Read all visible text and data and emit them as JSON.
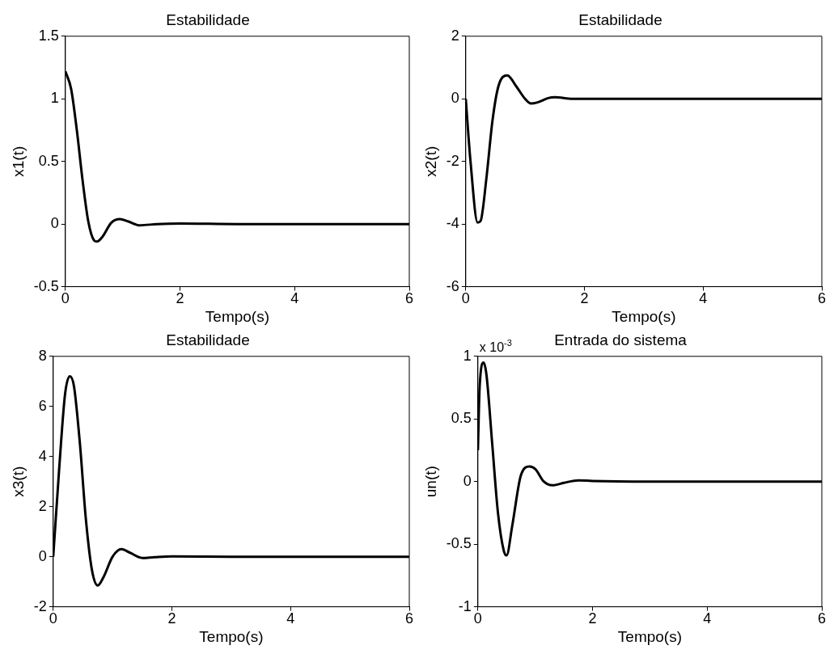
{
  "chart_data": [
    {
      "type": "line",
      "title": "Estabilidade",
      "xlabel": "Tempo(s)",
      "ylabel": "x1(t)",
      "x": [
        0,
        0.1,
        0.2,
        0.3,
        0.4,
        0.5,
        0.55,
        0.65,
        0.8,
        0.95,
        1.1,
        1.3,
        1.6,
        2,
        3,
        4,
        5,
        6
      ],
      "series": [
        {
          "color": "#000000",
          "values": [
            1.22,
            1.08,
            0.75,
            0.35,
            0.02,
            -0.13,
            -0.14,
            -0.1,
            0.01,
            0.04,
            0.02,
            -0.01,
            0,
            0.005,
            0,
            0,
            0,
            0
          ]
        }
      ],
      "xlim": [
        0,
        6
      ],
      "ylim": [
        -0.5,
        1.5
      ],
      "xticks": [
        0,
        2,
        4,
        6
      ],
      "yticks": [
        -0.5,
        0,
        0.5,
        1,
        1.5
      ]
    },
    {
      "type": "line",
      "title": "Estabilidade",
      "xlabel": "Tempo(s)",
      "ylabel": "x2(t)",
      "x": [
        0,
        0.08,
        0.2,
        0.25,
        0.35,
        0.45,
        0.55,
        0.7,
        0.85,
        1,
        1.1,
        1.2,
        1.4,
        1.5,
        1.8,
        3,
        4,
        5,
        6
      ],
      "series": [
        {
          "color": "#000000",
          "values": [
            0,
            -2,
            -3.95,
            -3.9,
            -2.5,
            -0.7,
            0.4,
            0.75,
            0.4,
            0,
            -0.15,
            -0.12,
            0.03,
            0.05,
            0,
            0,
            0,
            0,
            0
          ]
        }
      ],
      "xlim": [
        0,
        6
      ],
      "ylim": [
        -6,
        2
      ],
      "xticks": [
        0,
        2,
        4,
        6
      ],
      "yticks": [
        -6,
        -4,
        -2,
        0,
        2
      ]
    },
    {
      "type": "line",
      "title": "Estabilidade",
      "xlabel": "Tempo(s)",
      "ylabel": "x3(t)",
      "x": [
        0,
        0.1,
        0.2,
        0.28,
        0.35,
        0.45,
        0.55,
        0.65,
        0.75,
        0.85,
        1,
        1.15,
        1.3,
        1.5,
        1.7,
        2,
        3,
        4,
        5,
        6
      ],
      "series": [
        {
          "color": "#000000",
          "values": [
            0,
            3.5,
            6.5,
            7.2,
            6.8,
            4.5,
            1.5,
            -0.5,
            -1.15,
            -0.8,
            0,
            0.3,
            0.15,
            -0.05,
            -0.02,
            0.01,
            0,
            0,
            0,
            0
          ]
        }
      ],
      "xlim": [
        0,
        6
      ],
      "ylim": [
        -2,
        8
      ],
      "xticks": [
        0,
        2,
        4,
        6
      ],
      "yticks": [
        -2,
        0,
        2,
        4,
        6,
        8
      ]
    },
    {
      "type": "line",
      "title": "Entrada do sistema",
      "xlabel": "Tempo(s)",
      "ylabel": "un(t)",
      "annotations": [
        "x 10$^{-3}$"
      ],
      "x": [
        0,
        0.03,
        0.1,
        0.15,
        0.25,
        0.35,
        0.45,
        0.5,
        0.6,
        0.75,
        0.9,
        1,
        1.15,
        1.3,
        1.5,
        1.75,
        2,
        3,
        4,
        5,
        6
      ],
      "series": [
        {
          "color": "#000000",
          "values": [
            0.25,
            0.75,
            0.95,
            0.85,
            0.3,
            -0.25,
            -0.55,
            -0.59,
            -0.35,
            0.05,
            0.12,
            0.1,
            0,
            -0.03,
            -0.01,
            0.01,
            0.005,
            0,
            0,
            0,
            0
          ]
        }
      ],
      "xlim": [
        0,
        6
      ],
      "ylim": [
        -1,
        1
      ],
      "xticks": [
        0,
        2,
        4,
        6
      ],
      "yticks": [
        -1,
        -0.5,
        0,
        0.5,
        1
      ]
    }
  ]
}
